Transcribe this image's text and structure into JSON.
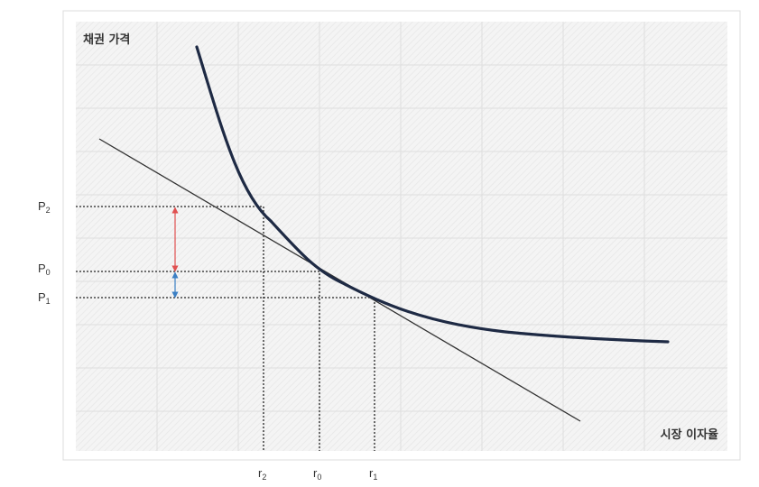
{
  "diagram": {
    "y_axis_title": "채권 가격",
    "x_axis_title": "시장 이자율",
    "price_labels": [
      {
        "main": "P",
        "sub": "2"
      },
      {
        "main": "P",
        "sub": "0"
      },
      {
        "main": "P",
        "sub": "1"
      }
    ],
    "rate_labels": [
      {
        "main": "r",
        "sub": "2"
      },
      {
        "main": "r",
        "sub": "0"
      },
      {
        "main": "r",
        "sub": "1"
      }
    ],
    "colors": {
      "curve": "#1e2a44",
      "tangent": "#333333",
      "increase_arrow": "#e05050",
      "decrease_arrow": "#3b7fc4",
      "guide": "#222222"
    }
  }
}
